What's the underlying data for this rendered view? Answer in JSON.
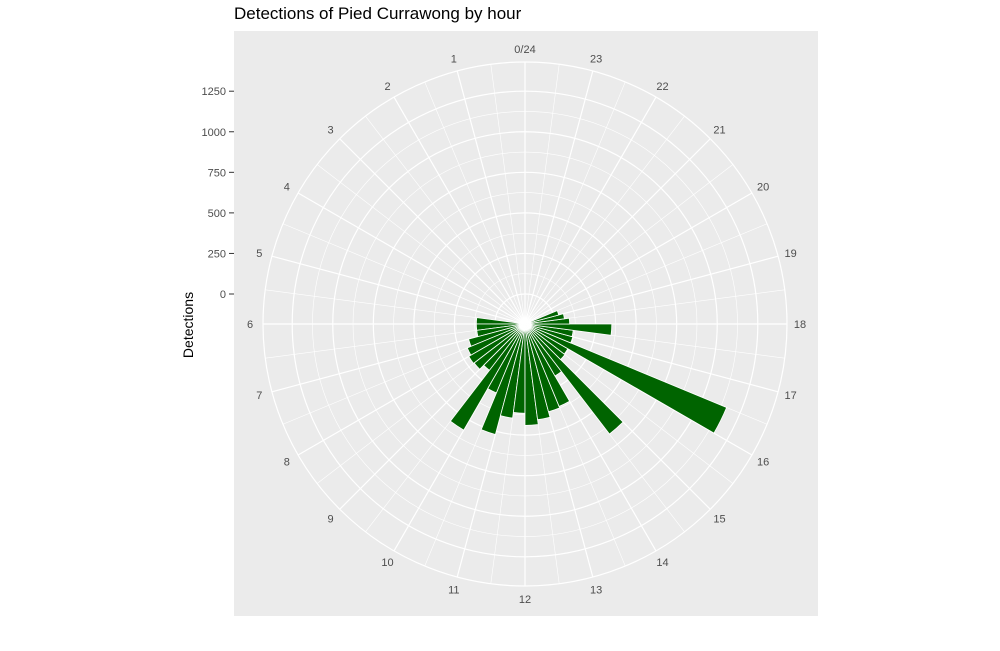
{
  "chart_data": {
    "type": "bar",
    "coord": "polar",
    "title": "Detections of Pied Currawong by hour",
    "xlabel": "",
    "ylabel": "Detections",
    "categories": [
      "0/24",
      "1",
      "2",
      "3",
      "4",
      "5",
      "6",
      "7",
      "8",
      "9",
      "10",
      "11",
      "12",
      "13",
      "14",
      "15",
      "16",
      "17",
      "18",
      "19",
      "20",
      "21",
      "22",
      "23"
    ],
    "bin_width_hours": 0.5,
    "bins": [
      {
        "start": 5.5,
        "value": 115
      },
      {
        "start": 6.0,
        "value": 115
      },
      {
        "start": 6.5,
        "value": 115
      },
      {
        "start": 7.0,
        "value": 175
      },
      {
        "start": 7.5,
        "value": 200
      },
      {
        "start": 8.0,
        "value": 215
      },
      {
        "start": 8.5,
        "value": 210
      },
      {
        "start": 9.0,
        "value": 175
      },
      {
        "start": 9.5,
        "value": 570
      },
      {
        "start": 10.0,
        "value": 275
      },
      {
        "start": 10.5,
        "value": 520
      },
      {
        "start": 11.0,
        "value": 400
      },
      {
        "start": 11.5,
        "value": 365
      },
      {
        "start": 12.0,
        "value": 440
      },
      {
        "start": 12.5,
        "value": 410
      },
      {
        "start": 13.0,
        "value": 375
      },
      {
        "start": 13.5,
        "value": 365
      },
      {
        "start": 14.0,
        "value": 185
      },
      {
        "start": 14.5,
        "value": 670
      },
      {
        "start": 15.0,
        "value": 125
      },
      {
        "start": 15.5,
        "value": 120
      },
      {
        "start": 16.0,
        "value": 1160
      },
      {
        "start": 16.5,
        "value": 120
      },
      {
        "start": 17.0,
        "value": 115
      },
      {
        "start": 17.5,
        "value": 350
      },
      {
        "start": 18.0,
        "value": 90
      },
      {
        "start": 18.5,
        "value": 60
      },
      {
        "start": 19.0,
        "value": 30
      }
    ],
    "y_ticks": [
      "0",
      "250",
      "500",
      "750",
      "1000",
      "1250"
    ],
    "ylim": [
      0,
      1430
    ],
    "bar_color": "#006400",
    "panel_color": "#EBEBEB",
    "grid": true,
    "legend": "none"
  }
}
